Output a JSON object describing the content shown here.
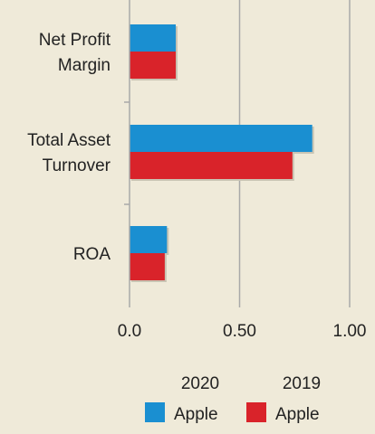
{
  "chart_data": {
    "type": "bar",
    "orientation": "horizontal",
    "categories": [
      [
        "Net Profit",
        "Margin"
      ],
      [
        "Total Asset",
        "Turnover"
      ],
      [
        "ROA"
      ]
    ],
    "series": [
      {
        "name": "Apple",
        "group": "2020",
        "color": "#1a8fd1",
        "values": [
          0.21,
          0.83,
          0.17
        ]
      },
      {
        "name": "Apple",
        "group": "2019",
        "color": "#d9232a",
        "values": [
          0.21,
          0.74,
          0.16
        ]
      }
    ],
    "xlim": [
      0,
      1.0
    ],
    "xticks": [
      0,
      0.5,
      1.0
    ],
    "xtick_labels": [
      "0.0",
      "0.50",
      "1.00"
    ],
    "grid": true,
    "legend_position": "bottom",
    "colors": {
      "background": "#efead9",
      "grid": "#a9a9a9",
      "axis": "#a9a9a9",
      "shadow": "#c9c4b3"
    }
  }
}
